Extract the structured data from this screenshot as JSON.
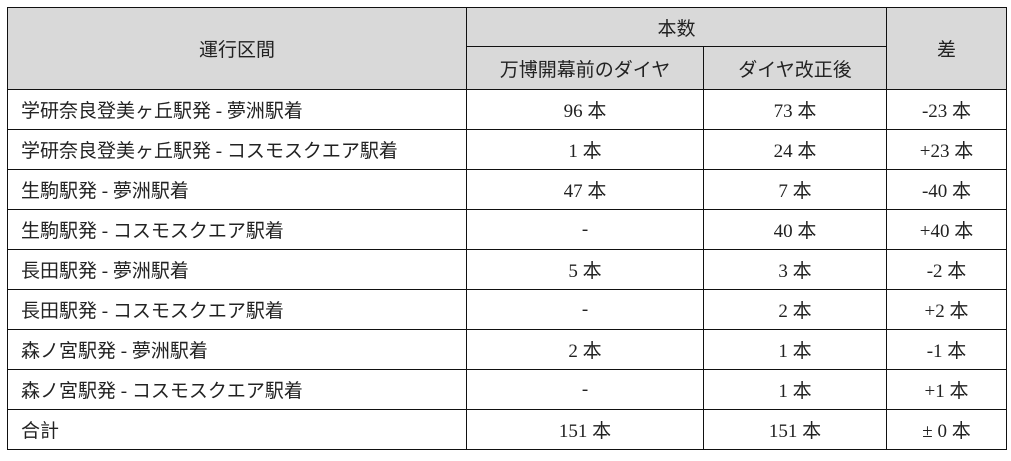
{
  "table": {
    "headers": {
      "route": "運行区間",
      "count_group": "本数",
      "before": "万博開幕前のダイヤ",
      "after": "ダイヤ改正後",
      "diff": "差"
    },
    "rows": [
      {
        "route": "学研奈良登美ヶ丘駅発 - 夢洲駅着",
        "before": "96 本",
        "after": "73 本",
        "diff": "-23 本"
      },
      {
        "route": "学研奈良登美ヶ丘駅発 - コスモスクエア駅着",
        "before": "1 本",
        "after": "24 本",
        "diff": "+23 本"
      },
      {
        "route": "生駒駅発 - 夢洲駅着",
        "before": "47 本",
        "after": "7 本",
        "diff": "-40 本"
      },
      {
        "route": "生駒駅発 - コスモスクエア駅着",
        "before": "-",
        "after": "40 本",
        "diff": "+40 本"
      },
      {
        "route": "長田駅発 - 夢洲駅着",
        "before": "5 本",
        "after": "3 本",
        "diff": "-2 本"
      },
      {
        "route": "長田駅発 - コスモスクエア駅着",
        "before": "-",
        "after": "2 本",
        "diff": "+2 本"
      },
      {
        "route": "森ノ宮駅発 - 夢洲駅着",
        "before": "2 本",
        "after": "1 本",
        "diff": "-1 本"
      },
      {
        "route": "森ノ宮駅発 - コスモスクエア駅着",
        "before": "-",
        "after": "1 本",
        "diff": "+1 本"
      },
      {
        "route": "合計",
        "before": "151 本",
        "after": "151 本",
        "diff": "± 0 本"
      }
    ]
  }
}
